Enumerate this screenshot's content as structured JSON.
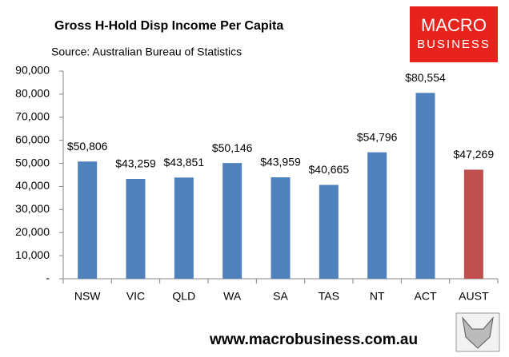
{
  "chart_data": {
    "type": "bar",
    "title": "Gross H-Hold Disp Income Per Capita",
    "subtitle": "Source: Australian Bureau of Statistics",
    "logo": [
      "MACRO",
      "BUSINESS"
    ],
    "footer": "www.macrobusiness.com.au",
    "categories": [
      "NSW",
      "VIC",
      "QLD",
      "WA",
      "SA",
      "TAS",
      "NT",
      "ACT",
      "AUST"
    ],
    "values": [
      50806,
      43259,
      43851,
      50146,
      43959,
      40665,
      54796,
      80554,
      47269
    ],
    "value_labels": [
      "$50,806",
      "$43,259",
      "$43,851",
      "$50,146",
      "$43,959",
      "$40,665",
      "$54,796",
      "$80,554",
      "$47,269"
    ],
    "colors": [
      "#4f81bd",
      "#4f81bd",
      "#4f81bd",
      "#4f81bd",
      "#4f81bd",
      "#4f81bd",
      "#4f81bd",
      "#4f81bd",
      "#c0504d"
    ],
    "ylim": [
      0,
      90000
    ],
    "yticks": [
      {
        "value": 0,
        "label": "-"
      },
      {
        "value": 10000,
        "label": "10,000"
      },
      {
        "value": 20000,
        "label": "20,000"
      },
      {
        "value": 30000,
        "label": "30,000"
      },
      {
        "value": 40000,
        "label": "40,000"
      },
      {
        "value": 50000,
        "label": "50,000"
      },
      {
        "value": 60000,
        "label": "60,000"
      },
      {
        "value": 70000,
        "label": "70,000"
      },
      {
        "value": 80000,
        "label": "80,000"
      },
      {
        "value": 90000,
        "label": "90,000"
      }
    ],
    "grid": false
  }
}
